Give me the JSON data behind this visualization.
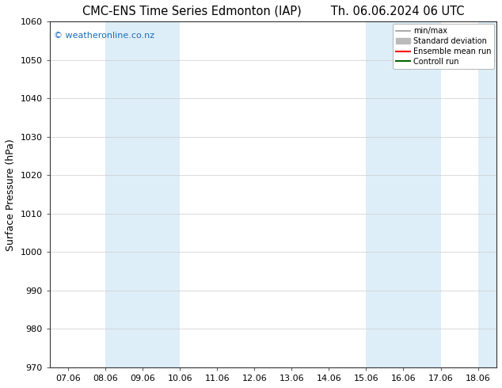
{
  "title_left": "CMC-ENS Time Series Edmonton (IAP)",
  "title_right": "Th. 06.06.2024 06 UTC",
  "ylabel": "Surface Pressure (hPa)",
  "ylim": [
    970,
    1060
  ],
  "yticks": [
    970,
    980,
    990,
    1000,
    1010,
    1020,
    1030,
    1040,
    1050,
    1060
  ],
  "xtick_labels": [
    "07.06",
    "08.06",
    "09.06",
    "10.06",
    "11.06",
    "12.06",
    "13.06",
    "14.06",
    "15.06",
    "16.06",
    "17.06",
    "18.06"
  ],
  "xtick_positions": [
    0,
    1,
    2,
    3,
    4,
    5,
    6,
    7,
    8,
    9,
    10,
    11
  ],
  "xlim": [
    -0.5,
    11.5
  ],
  "shaded_bands": [
    {
      "xmin": 1,
      "xmax": 3,
      "color": "#ddeef8"
    },
    {
      "xmin": 8,
      "xmax": 10,
      "color": "#ddeef8"
    }
  ],
  "right_edge_shade": {
    "xmin": 11.0,
    "xmax": 11.5,
    "color": "#ddeef8"
  },
  "watermark": "© weatheronline.co.nz",
  "watermark_color": "#1a6dbd",
  "legend_entries": [
    {
      "label": "min/max",
      "color": "#999999",
      "lw": 1.2
    },
    {
      "label": "Standard deviation",
      "color": "#bbbbbb",
      "lw": 5
    },
    {
      "label": "Ensemble mean run",
      "color": "#ff0000",
      "lw": 1.5
    },
    {
      "label": "Controll run",
      "color": "#006600",
      "lw": 1.5
    }
  ],
  "background_color": "#ffffff",
  "grid_color": "#cccccc",
  "title_fontsize": 10.5,
  "axis_label_fontsize": 9,
  "tick_fontsize": 8,
  "watermark_fontsize": 8
}
